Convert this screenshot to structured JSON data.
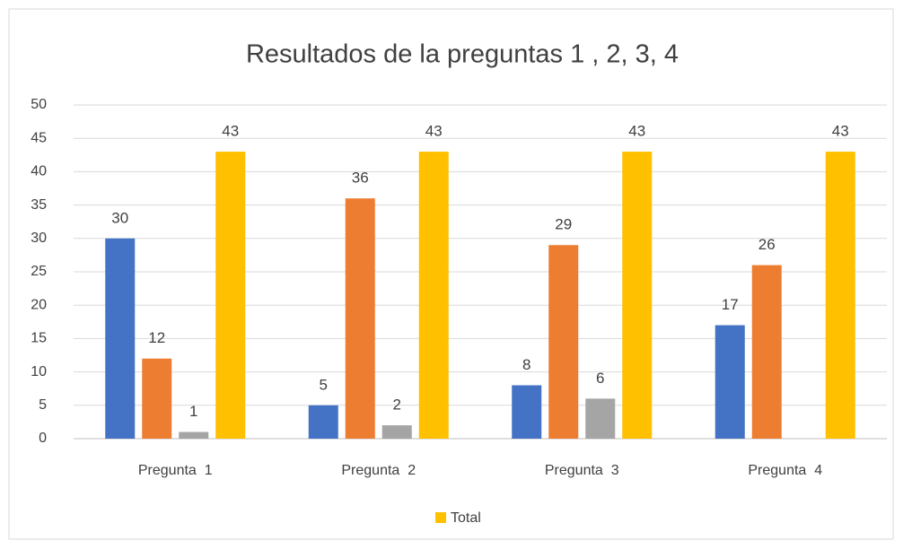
{
  "chart_data": {
    "type": "bar",
    "title": "Resultados de la preguntas 1 , 2, 3, 4",
    "categories": [
      "Pregunta  1",
      "Pregunta  2",
      "Pregunta  3",
      "Pregunta  4"
    ],
    "series": [
      {
        "color": "#4472c4",
        "values": [
          30,
          5,
          8,
          17
        ]
      },
      {
        "color": "#ed7d31",
        "values": [
          12,
          36,
          29,
          26
        ]
      },
      {
        "color": "#a5a5a5",
        "values": [
          1,
          2,
          6,
          null
        ]
      },
      {
        "name": "Total",
        "color": "#ffc000",
        "values": [
          43,
          43,
          43,
          43
        ]
      }
    ],
    "ylim": [
      0,
      50
    ],
    "yticks": [
      0,
      5,
      10,
      15,
      20,
      25,
      30,
      35,
      40,
      45,
      50
    ],
    "grid": true,
    "legend": "bottom"
  }
}
